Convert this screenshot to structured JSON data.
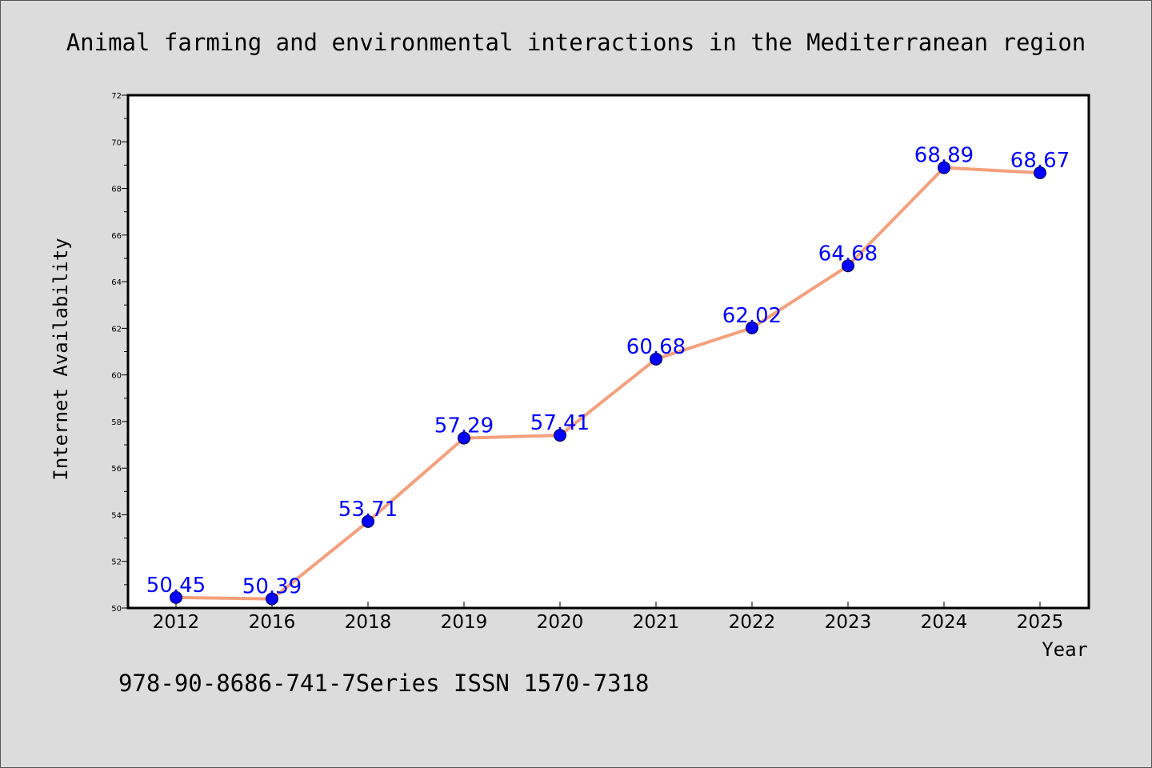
{
  "chart_data": {
    "type": "line",
    "title": "Animal farming and environmental interactions in the Mediterranean region",
    "xlabel": "Year",
    "ylabel": "Internet Availability",
    "categories": [
      "2012",
      "2016",
      "2018",
      "2019",
      "2020",
      "2021",
      "2022",
      "2023",
      "2024",
      "2025"
    ],
    "series": [
      {
        "values": [
          50.45,
          50.39,
          53.71,
          57.29,
          57.41,
          60.68,
          62.02,
          64.68,
          68.89,
          68.67
        ],
        "labels": [
          "50.45",
          "50.39",
          "53.71",
          "57.29",
          "57.41",
          "60.68",
          "62.02",
          "64.68",
          "68.89",
          "68.67"
        ],
        "line_color": "#f4a07c",
        "marker_color": "#0000ff"
      }
    ],
    "ylim": [
      50,
      72
    ],
    "yticks": [
      "50",
      "52",
      "54",
      "56",
      "58",
      "60",
      "62",
      "64",
      "66",
      "68",
      "70",
      "72"
    ],
    "grid": false,
    "legend": "none"
  },
  "footer": "978-90-8686-741-7Series ISSN 1570-7318",
  "colors": {
    "background": "#dcdcdc",
    "plot_background": "#ffffff",
    "line": "#f4a07c",
    "marker": "#0000ff",
    "data_label": "#0000ff"
  }
}
